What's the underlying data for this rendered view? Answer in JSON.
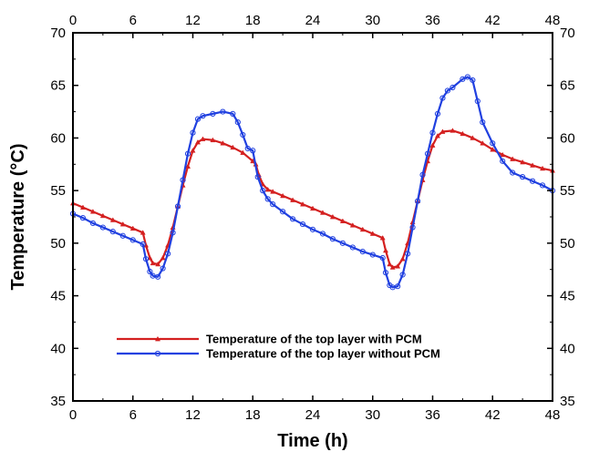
{
  "chart_data": {
    "type": "line",
    "xlabel": "Time (h)",
    "ylabel": "Temperature (°C)",
    "xlim": [
      0,
      48
    ],
    "ylim": [
      35,
      70
    ],
    "xticks": [
      "0",
      "6",
      "12",
      "18",
      "24",
      "30",
      "36",
      "42",
      "48"
    ],
    "yticks": [
      "35",
      "40",
      "45",
      "50",
      "55",
      "60",
      "65",
      "70"
    ],
    "grid": false,
    "legend_position": "lower-center",
    "series": [
      {
        "name": "Temperature of the top layer with PCM",
        "color": "#d42020",
        "marker": "triangle",
        "x": [
          0,
          1,
          2,
          3,
          4,
          5,
          6,
          7,
          7.3,
          7.7,
          8,
          8.5,
          9,
          9.5,
          10,
          10.5,
          11,
          11.5,
          12,
          12.5,
          13,
          14,
          15,
          16,
          17,
          18,
          18.3,
          18.6,
          19,
          19.5,
          20,
          21,
          22,
          23,
          24,
          25,
          26,
          27,
          28,
          29,
          30,
          31,
          31.3,
          31.7,
          32,
          32.5,
          33,
          33.5,
          34,
          34.5,
          35,
          35.5,
          36,
          36.5,
          37,
          38,
          39,
          40,
          41,
          42,
          43,
          44,
          45,
          46,
          47,
          48
        ],
        "y": [
          53.8,
          53.4,
          53.0,
          52.6,
          52.2,
          51.8,
          51.4,
          51.0,
          49.8,
          48.6,
          48.1,
          48.0,
          48.6,
          49.8,
          51.5,
          53.5,
          55.5,
          57.3,
          58.8,
          59.6,
          59.9,
          59.8,
          59.5,
          59.1,
          58.6,
          57.8,
          57.5,
          56.5,
          55.6,
          55.1,
          54.9,
          54.5,
          54.1,
          53.7,
          53.3,
          52.9,
          52.5,
          52.1,
          51.7,
          51.3,
          50.9,
          50.5,
          49.3,
          48.0,
          47.7,
          47.8,
          48.5,
          50.0,
          52.0,
          54.0,
          56.0,
          57.8,
          59.3,
          60.2,
          60.6,
          60.7,
          60.4,
          60.0,
          59.5,
          58.9,
          58.4,
          58.0,
          57.7,
          57.4,
          57.1,
          56.9
        ]
      },
      {
        "name": "Temperature of the top layer without PCM",
        "color": "#2040e0",
        "marker": "circle",
        "x": [
          0,
          1,
          2,
          3,
          4,
          5,
          6,
          7,
          7.3,
          7.7,
          8,
          8.5,
          9,
          9.5,
          10,
          10.5,
          11,
          11.5,
          12,
          12.5,
          13,
          14,
          15,
          16,
          16.5,
          17,
          17.5,
          18,
          18.5,
          19,
          19.5,
          20,
          21,
          22,
          23,
          24,
          25,
          26,
          27,
          28,
          29,
          30,
          31,
          31.3,
          31.7,
          32,
          32.5,
          33,
          33.5,
          34,
          34.5,
          35,
          35.5,
          36,
          36.5,
          37,
          37.5,
          38,
          39,
          39.5,
          40,
          40.5,
          41,
          42,
          43,
          44,
          45,
          46,
          47,
          48
        ],
        "y": [
          52.8,
          52.4,
          51.9,
          51.5,
          51.1,
          50.7,
          50.3,
          49.9,
          48.5,
          47.3,
          46.9,
          46.8,
          47.6,
          49.0,
          51.0,
          53.5,
          56.0,
          58.5,
          60.5,
          61.8,
          62.1,
          62.3,
          62.5,
          62.3,
          61.5,
          60.3,
          59.0,
          58.8,
          56.3,
          55.0,
          54.2,
          53.7,
          53.0,
          52.3,
          51.8,
          51.3,
          50.9,
          50.4,
          50.0,
          49.6,
          49.2,
          48.9,
          48.6,
          47.2,
          46.0,
          45.8,
          45.9,
          47.0,
          49.0,
          51.5,
          54.0,
          56.5,
          58.5,
          60.5,
          62.3,
          63.8,
          64.5,
          64.8,
          65.6,
          65.8,
          65.5,
          63.5,
          61.5,
          59.5,
          57.8,
          56.7,
          56.3,
          55.9,
          55.5,
          55.0
        ]
      }
    ]
  }
}
